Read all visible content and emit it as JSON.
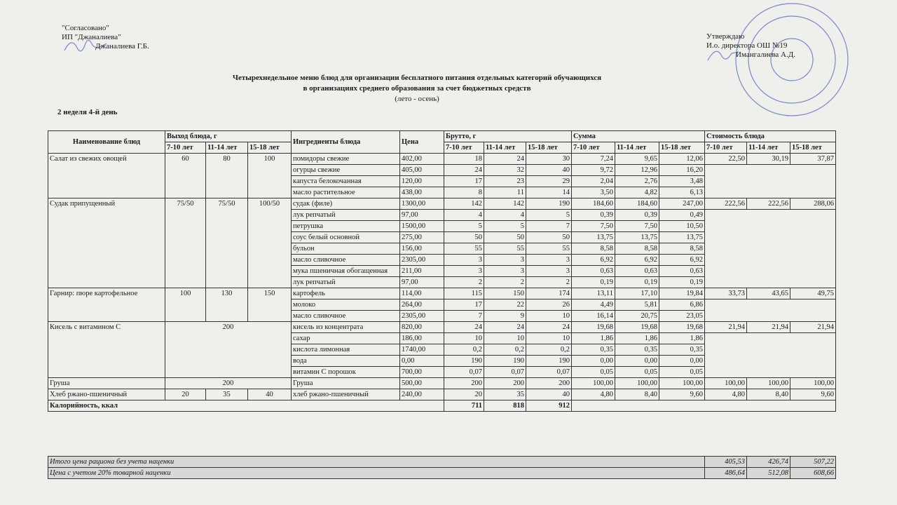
{
  "header": {
    "left": [
      "\"Согласовано\"",
      "ИП \"Джаналиева\"",
      "Джаналиева Г.Б."
    ],
    "right": [
      "Утверждаю",
      "И.о. директора ОШ №19",
      "Имангалиева А.Д."
    ]
  },
  "title": [
    "Четырехнедельное меню блюд для организации бесплатного питания отдельных категорий обучающихся",
    "в организациях среднего образования за счет бюджетных средств",
    "(лето - осень)"
  ],
  "day": "2 неделя 4-й день",
  "table": {
    "headers": {
      "dish": "Наименование блюд",
      "yield": "Выход блюда, г",
      "ingredient": "Ингредиенты блюда",
      "price": "Цена",
      "brutto": "Брутто, г",
      "sum": "Сумма",
      "cost": "Стоимость блюда",
      "ages": [
        "7-10 лет",
        "11-14 лет",
        "15-18 лет"
      ]
    },
    "dishes": [
      {
        "name": "Салат из свежих овощей",
        "yield": [
          "60",
          "80",
          "100"
        ],
        "cost": [
          "22,50",
          "30,19",
          "37,87"
        ],
        "ingredients": [
          {
            "name": "помидоры свежие",
            "price": "402,00",
            "brutto": [
              "18",
              "24",
              "30"
            ],
            "sum": [
              "7,24",
              "9,65",
              "12,06"
            ]
          },
          {
            "name": "огурцы свежие",
            "price": "405,00",
            "brutto": [
              "24",
              "32",
              "40"
            ],
            "sum": [
              "9,72",
              "12,96",
              "16,20"
            ]
          },
          {
            "name": "капуста белокочанная",
            "price": "120,00",
            "brutto": [
              "17",
              "23",
              "29"
            ],
            "sum": [
              "2,04",
              "2,76",
              "3,48"
            ]
          },
          {
            "name": "масло растительное",
            "price": "438,00",
            "brutto": [
              "8",
              "11",
              "14"
            ],
            "sum": [
              "3,50",
              "4,82",
              "6,13"
            ]
          }
        ]
      },
      {
        "name": "Судак припущенный",
        "yield": [
          "75/50",
          "75/50",
          "100/50"
        ],
        "cost": [
          "222,56",
          "222,56",
          "288,06"
        ],
        "ingredients": [
          {
            "name": "судак (филе)",
            "price": "1300,00",
            "brutto": [
              "142",
              "142",
              "190"
            ],
            "sum": [
              "184,60",
              "184,60",
              "247,00"
            ]
          },
          {
            "name": "лук репчатый",
            "price": "97,00",
            "brutto": [
              "4",
              "4",
              "5"
            ],
            "sum": [
              "0,39",
              "0,39",
              "0,49"
            ]
          },
          {
            "name": "петрушка",
            "price": "1500,00",
            "brutto": [
              "5",
              "5",
              "7"
            ],
            "sum": [
              "7,50",
              "7,50",
              "10,50"
            ]
          },
          {
            "name": "соус белый основной",
            "price": "275,00",
            "brutto": [
              "50",
              "50",
              "50"
            ],
            "sum": [
              "13,75",
              "13,75",
              "13,75"
            ]
          },
          {
            "name": "бульон",
            "price": "156,00",
            "brutto": [
              "55",
              "55",
              "55"
            ],
            "sum": [
              "8,58",
              "8,58",
              "8,58"
            ]
          },
          {
            "name": "масло сливочное",
            "price": "2305,00",
            "brutto": [
              "3",
              "3",
              "3"
            ],
            "sum": [
              "6,92",
              "6,92",
              "6,92"
            ]
          },
          {
            "name": "мука пшеничная обогащенная",
            "price": "211,00",
            "brutto": [
              "3",
              "3",
              "3"
            ],
            "sum": [
              "0,63",
              "0,63",
              "0,63"
            ]
          },
          {
            "name": "лук репчатый",
            "price": "97,00",
            "brutto": [
              "2",
              "2",
              "2"
            ],
            "sum": [
              "0,19",
              "0,19",
              "0,19"
            ]
          }
        ]
      },
      {
        "name": "Гарнир: пюре картофельное",
        "yield": [
          "100",
          "130",
          "150"
        ],
        "cost": [
          "33,73",
          "43,65",
          "49,75"
        ],
        "ingredients": [
          {
            "name": "картофель",
            "price": "114,00",
            "brutto": [
              "115",
              "150",
              "174"
            ],
            "sum": [
              "13,11",
              "17,10",
              "19,84"
            ]
          },
          {
            "name": "молоко",
            "price": "264,00",
            "brutto": [
              "17",
              "22",
              "26"
            ],
            "sum": [
              "4,49",
              "5,81",
              "6,86"
            ]
          },
          {
            "name": "масло сливочное",
            "price": "2305,00",
            "brutto": [
              "7",
              "9",
              "10"
            ],
            "sum": [
              "16,14",
              "20,75",
              "23,05"
            ]
          }
        ]
      },
      {
        "name": "Кисель с витамином С",
        "yield": [
          "200"
        ],
        "cost": [
          "21,94",
          "21,94",
          "21,94"
        ],
        "ingredients": [
          {
            "name": "кисель из концентрата",
            "price": "820,00",
            "brutto": [
              "24",
              "24",
              "24"
            ],
            "sum": [
              "19,68",
              "19,68",
              "19,68"
            ]
          },
          {
            "name": "сахар",
            "price": "186,00",
            "brutto": [
              "10",
              "10",
              "10"
            ],
            "sum": [
              "1,86",
              "1,86",
              "1,86"
            ]
          },
          {
            "name": "кислота лимонная",
            "price": "1740,00",
            "brutto": [
              "0,2",
              "0,2",
              "0,2"
            ],
            "sum": [
              "0,35",
              "0,35",
              "0,35"
            ]
          },
          {
            "name": "вода",
            "price": "0,00",
            "brutto": [
              "190",
              "190",
              "190"
            ],
            "sum": [
              "0,00",
              "0,00",
              "0,00"
            ]
          },
          {
            "name": "витамин С порошок",
            "price": "700,00",
            "brutto": [
              "0,07",
              "0,07",
              "0,07"
            ],
            "sum": [
              "0,05",
              "0,05",
              "0,05"
            ]
          }
        ]
      },
      {
        "name": "Груша",
        "yield": [
          "200"
        ],
        "cost": [
          "100,00",
          "100,00",
          "100,00"
        ],
        "ingredients": [
          {
            "name": "Груша",
            "price": "500,00",
            "brutto": [
              "200",
              "200",
              "200"
            ],
            "sum": [
              "100,00",
              "100,00",
              "100,00"
            ]
          }
        ]
      },
      {
        "name": "Хлеб ржано-пшеничный",
        "yield": [
          "20",
          "35",
          "40"
        ],
        "cost": [
          "4,80",
          "8,40",
          "9,60"
        ],
        "ingredients": [
          {
            "name": "хлеб ржано-пшеничный",
            "price": "240,00",
            "brutto": [
              "20",
              "35",
              "40"
            ],
            "sum": [
              "4,80",
              "8,40",
              "9,60"
            ]
          }
        ]
      }
    ],
    "calories": {
      "label": "Калорийность, ккал",
      "values": [
        "711",
        "818",
        "912"
      ]
    },
    "totals": [
      {
        "label": "Итого цена рациона без учета наценки",
        "values": [
          "405,53",
          "426,74",
          "507,22"
        ]
      },
      {
        "label": "Цена с учетом 20% товарной наценки",
        "values": [
          "486,64",
          "512,08",
          "608,66"
        ]
      }
    ]
  }
}
